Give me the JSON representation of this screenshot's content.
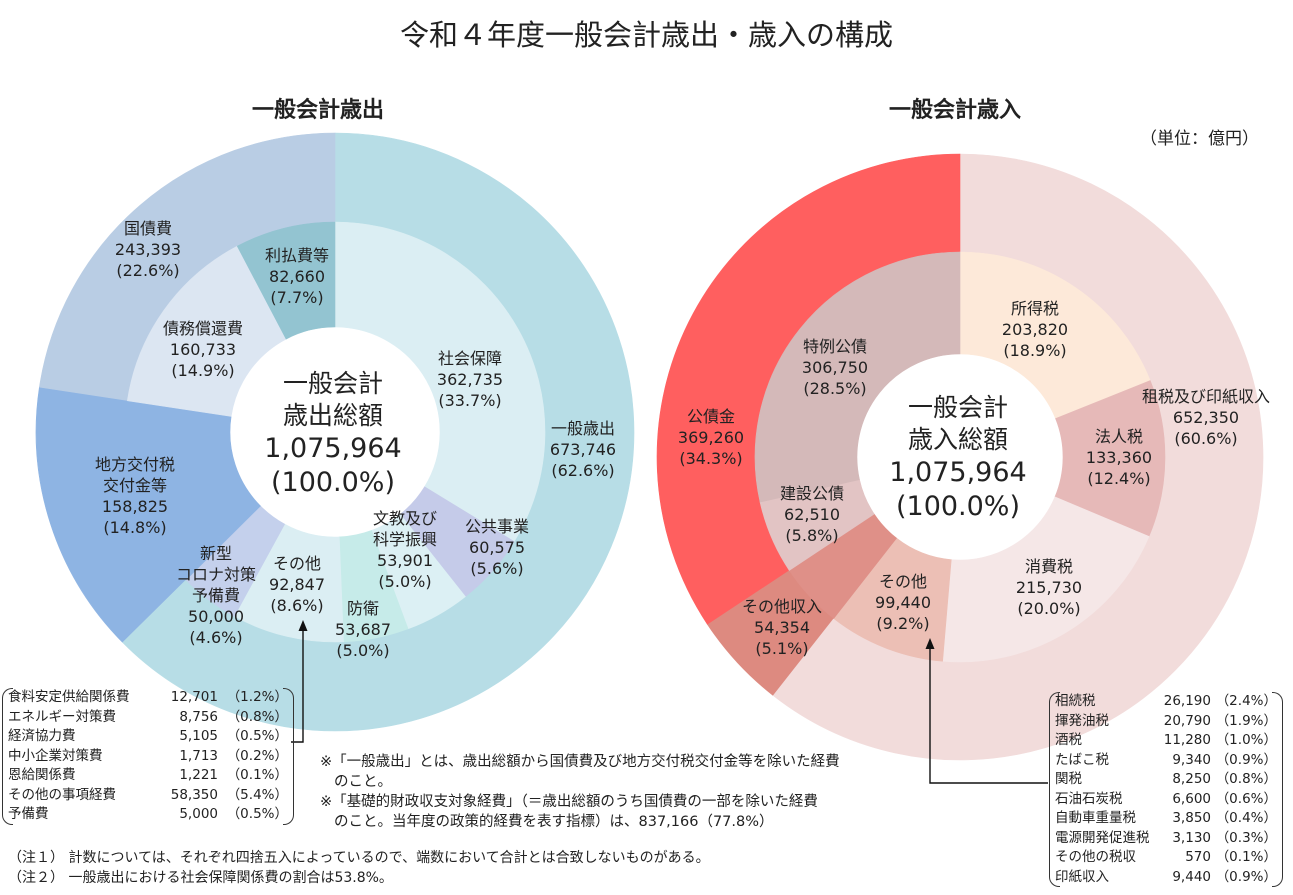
{
  "title": "令和４年度一般会計歳出・歳入の構成",
  "unit": "（単位：億円）",
  "chart_data": [
    {
      "type": "pie",
      "title": "一般会計歳出",
      "center": {
        "line1": "一般会計",
        "line2": "歳出総額",
        "value": "1,075,964",
        "pct": "(100.0%)"
      },
      "outer": [
        {
          "name": "一般歳出",
          "value": 673746,
          "value_label": "673,746",
          "pct": "(62.6%)",
          "percent": 62.6,
          "color": "#b7dde6"
        },
        {
          "name": "地方交付税交付金等",
          "value": 158825,
          "value_label": "158,825",
          "pct": "(14.8%)",
          "percent": 14.8,
          "color": "#8eb4e3"
        },
        {
          "name": "国債費",
          "value": 243393,
          "value_label": "243,393",
          "pct": "(22.6%)",
          "percent": 22.6,
          "color": "#b9cde4"
        }
      ],
      "inner": [
        {
          "name": "社会保障",
          "value": 362735,
          "value_label": "362,735",
          "pct": "(33.7%)",
          "percent": 33.7,
          "color": "#dbeef3"
        },
        {
          "name": "公共事業",
          "value": 60575,
          "value_label": "60,575",
          "pct": "(5.6%)",
          "percent": 5.6,
          "color": "#c5cbe9"
        },
        {
          "name": "文教及び科学振興",
          "value": 53901,
          "value_label": "53,901",
          "pct": "(5.0%)",
          "percent": 5.0,
          "color": "#dcf0f4"
        },
        {
          "name": "防衛",
          "value": 53687,
          "value_label": "53,687",
          "pct": "(5.0%)",
          "percent": 5.0,
          "color": "#c6ebe9"
        },
        {
          "name": "その他",
          "value": 92847,
          "value_label": "92,847",
          "pct": "(8.6%)",
          "percent": 8.6,
          "color": "#dbeef3"
        },
        {
          "name": "新型コロナ対策予備費",
          "value": 50000,
          "value_label": "50,000",
          "pct": "(4.6%)",
          "percent": 4.6,
          "color": "#c4d0ec"
        },
        {
          "name": "地方交付税交付金等",
          "value": 158825,
          "percent": 14.8,
          "color": "#8eb4e3"
        },
        {
          "name": "債務償還費",
          "value": 160733,
          "value_label": "160,733",
          "pct": "(14.9%)",
          "percent": 14.9,
          "color": "#dce6f2"
        },
        {
          "name": "利払費等",
          "value": 82660,
          "value_label": "82,660",
          "pct": "(7.7%)",
          "percent": 7.7,
          "color": "#93c4d1"
        }
      ],
      "label_lines": {
        "chiho": [
          "地方交付税",
          "交付金等"
        ],
        "bunkyo": [
          "文教及び",
          "科学振興"
        ],
        "corona": [
          "新型",
          "コロナ対策",
          "予備費"
        ]
      },
      "other_breakdown": [
        {
          "name": "食料安定供給関係費",
          "value": "12,701",
          "pct": "（1.2%）"
        },
        {
          "name": "エネルギー対策費",
          "value": "8,756",
          "pct": "（0.8%）"
        },
        {
          "name": "経済協力費",
          "value": "5,105",
          "pct": "（0.5%）"
        },
        {
          "name": "中小企業対策費",
          "value": "1,713",
          "pct": "（0.2%）"
        },
        {
          "name": "恩給関係費",
          "value": "1,221",
          "pct": "（0.1%）"
        },
        {
          "name": "その他の事項経費",
          "value": "58,350",
          "pct": "（5.4%）"
        },
        {
          "name": "予備費",
          "value": "5,000",
          "pct": "（0.5%）"
        }
      ]
    },
    {
      "type": "pie",
      "title": "一般会計歳入",
      "center": {
        "line1": "一般会計",
        "line2": "歳入総額",
        "value": "1,075,964",
        "pct": "(100.0%)"
      },
      "outer": [
        {
          "name": "租税及び印紙収入",
          "value": 652350,
          "value_label": "652,350",
          "pct": "(60.6%)",
          "percent": 60.6,
          "color": "#f2dcdb"
        },
        {
          "name": "その他収入",
          "value": 54354,
          "value_label": "54,354",
          "pct": "(5.1%)",
          "percent": 5.1,
          "color": "#dd8a80"
        },
        {
          "name": "公債金",
          "value": 369260,
          "value_label": "369,260",
          "pct": "(34.3%)",
          "percent": 34.3,
          "color": "#ff5f5f"
        }
      ],
      "inner": [
        {
          "name": "所得税",
          "value": 203820,
          "value_label": "203,820",
          "pct": "(18.9%)",
          "percent": 18.9,
          "color": "#fde9d9"
        },
        {
          "name": "法人税",
          "value": 133360,
          "value_label": "133,360",
          "pct": "(12.4%)",
          "percent": 12.4,
          "color": "#e6b9b8"
        },
        {
          "name": "消費税",
          "value": 215730,
          "value_label": "215,730",
          "pct": "(20.0%)",
          "percent": 20.0,
          "color": "#f5e7e7"
        },
        {
          "name": "その他",
          "value": 99440,
          "value_label": "99,440",
          "pct": "(9.2%)",
          "percent": 9.2,
          "color": "#ecbfb5"
        },
        {
          "name": "その他収入",
          "value": 54354,
          "percent": 5.1,
          "color": "#df9088"
        },
        {
          "name": "建設公債",
          "value": 62510,
          "value_label": "62,510",
          "pct": "(5.8%)",
          "percent": 5.8,
          "color": "#e2c4c4"
        },
        {
          "name": "特例公債",
          "value": 306750,
          "value_label": "306,750",
          "pct": "(28.5%)",
          "percent": 28.5,
          "color": "#d4b9b9"
        }
      ],
      "other_breakdown": [
        {
          "name": "相続税",
          "value": "26,190",
          "pct": "（2.4%）"
        },
        {
          "name": "揮発油税",
          "value": "20,790",
          "pct": "（1.9%）"
        },
        {
          "name": "酒税",
          "value": "11,280",
          "pct": "（1.0%）"
        },
        {
          "name": "たばこ税",
          "value": "9,340",
          "pct": "（0.9%）"
        },
        {
          "name": "関税",
          "value": "8,250",
          "pct": "（0.8%）"
        },
        {
          "name": "石油石炭税",
          "value": "6,600",
          "pct": "（0.6%）"
        },
        {
          "name": "自動車重量税",
          "value": "3,850",
          "pct": "（0.4%）"
        },
        {
          "name": "電源開発促進税",
          "value": "3,130",
          "pct": "（0.3%）"
        },
        {
          "name": "その他の税収",
          "value": "570",
          "pct": "（0.1%）"
        },
        {
          "name": "印紙収入",
          "value": "9,440",
          "pct": "（0.9%）"
        }
      ]
    }
  ],
  "notes": {
    "asterisk1a": "※「一般歳出」とは、歳出総額から国債費及び地方交付税交付金等を除いた経費",
    "asterisk1b": "のこと。",
    "asterisk2a": "※「基礎的財政収支対象経費」（＝歳出総額のうち国債費の一部を除いた経費",
    "asterisk2b": "のこと。当年度の政策的経費を表す指標）は、837,166（77.8%）",
    "note1": "（注１） 計数については、それぞれ四捨五入によっているので、端数において合計とは合致しないものがある。",
    "note2": "（注２） 一般歳出における社会保障関係費の割合は53.8%。"
  }
}
